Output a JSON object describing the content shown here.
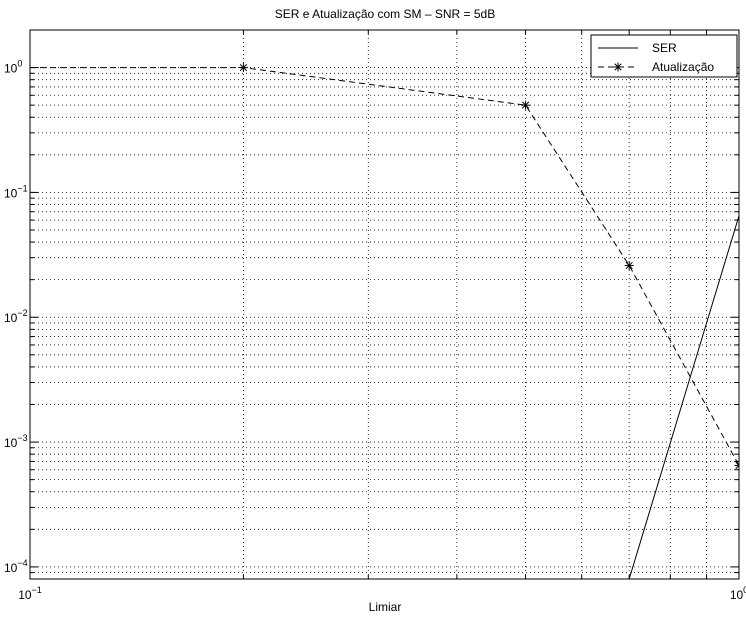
{
  "chart_data": {
    "type": "line",
    "title": "SER e Atualização com SM – SNR = 5dB",
    "xlabel": "Limiar",
    "ylabel": "",
    "xscale": "log",
    "yscale": "log",
    "xlim": [
      0.1,
      1
    ],
    "ylim": [
      8e-05,
      2
    ],
    "grid": true,
    "legend_position": "top-right",
    "x_ticks": [
      {
        "value": 0.1,
        "base": "10",
        "exp": "−1"
      },
      {
        "value": 1,
        "base": "10",
        "exp": "0"
      }
    ],
    "y_ticks": [
      {
        "value": 1,
        "base": "10",
        "exp": "0"
      },
      {
        "value": 0.1,
        "base": "10",
        "exp": "−1"
      },
      {
        "value": 0.01,
        "base": "10",
        "exp": "−2"
      },
      {
        "value": 0.001,
        "base": "10",
        "exp": "−3"
      },
      {
        "value": 0.0001,
        "base": "10",
        "exp": "−4"
      }
    ],
    "series": [
      {
        "name": "SER",
        "style": "solid",
        "marker": "none",
        "x": [
          0.67,
          0.7,
          1.0
        ],
        "y": [
          6e-05,
          8e-05,
          0.065
        ]
      },
      {
        "name": "Atualização",
        "style": "dashed",
        "marker": "asterisk",
        "x": [
          0.1,
          0.2,
          0.5,
          0.7,
          1.0
        ],
        "y": [
          1.0,
          1.0,
          0.5,
          0.026,
          0.00065
        ],
        "marker_points": [
          1,
          2,
          3,
          4
        ]
      }
    ]
  }
}
